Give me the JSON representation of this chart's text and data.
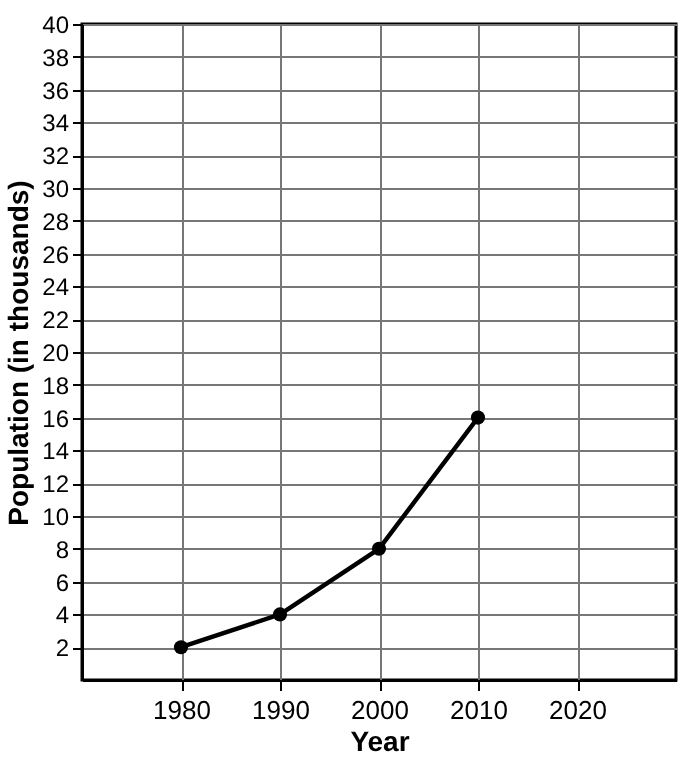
{
  "chart_data": {
    "type": "line",
    "xlabel": "Year",
    "ylabel": "Population (in thousands)",
    "x": [
      1980,
      1990,
      2000,
      2010
    ],
    "series": [
      {
        "color": "#000000",
        "values": [
          2,
          4,
          8,
          16
        ]
      }
    ],
    "xlim": [
      1970,
      2030
    ],
    "xticks": [
      1980,
      1990,
      2000,
      2010,
      2020
    ],
    "ylim": [
      0,
      40
    ],
    "yticks": [
      2,
      4,
      6,
      8,
      10,
      12,
      14,
      16,
      18,
      20,
      22,
      24,
      26,
      28,
      30,
      32,
      34,
      36,
      38,
      40
    ],
    "grid": true,
    "marker": "circle",
    "line_style": "solid"
  }
}
